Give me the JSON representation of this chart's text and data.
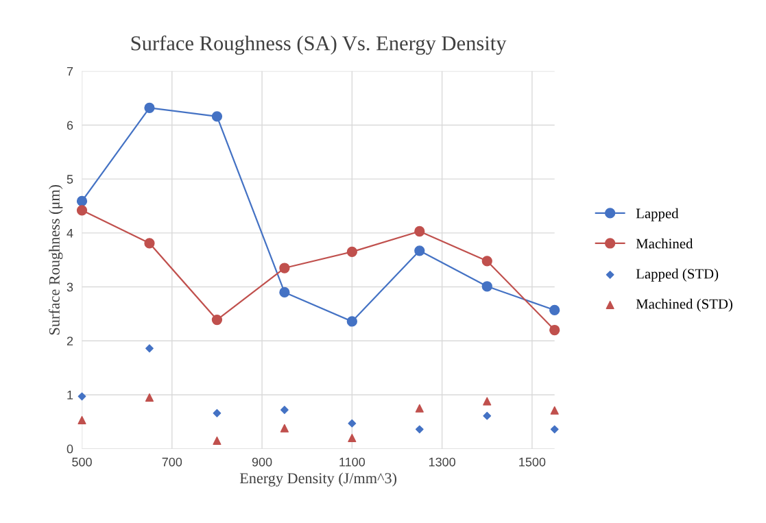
{
  "chart_data": {
    "type": "line",
    "title": "Surface Roughness (SA) Vs. Energy Density",
    "xlabel": "Energy Density (J/mm^3)",
    "ylabel": "Surface Roughness (μm)",
    "x": [
      500,
      650,
      800,
      950,
      1100,
      1250,
      1400,
      1550
    ],
    "series": [
      {
        "name": "Lapped",
        "color": "#4472c4",
        "marker": "circle",
        "values": [
          4.59,
          6.32,
          6.16,
          2.9,
          2.36,
          3.67,
          3.01,
          2.57
        ]
      },
      {
        "name": "Machined",
        "color": "#c0504d",
        "marker": "circle",
        "values": [
          4.42,
          3.81,
          2.39,
          3.35,
          3.65,
          4.03,
          3.48,
          2.2
        ]
      },
      {
        "name": "Lapped (STD)",
        "color": "#4472c4",
        "type": "scatter",
        "marker": "diamond",
        "values": [
          0.97,
          1.86,
          0.66,
          0.72,
          0.47,
          0.36,
          0.61,
          0.36
        ]
      },
      {
        "name": "Machined (STD)",
        "color": "#c0504d",
        "type": "scatter",
        "marker": "triangle",
        "values": [
          0.53,
          0.95,
          0.15,
          0.38,
          0.2,
          0.75,
          0.88,
          0.71
        ]
      }
    ],
    "xlim": [
      500,
      1550
    ],
    "xticks": [
      500,
      700,
      900,
      1100,
      1300,
      1500
    ],
    "ylim": [
      0,
      7
    ],
    "yticks": [
      0,
      1,
      2,
      3,
      4,
      5,
      6,
      7
    ],
    "grid": true,
    "legend": "right"
  }
}
